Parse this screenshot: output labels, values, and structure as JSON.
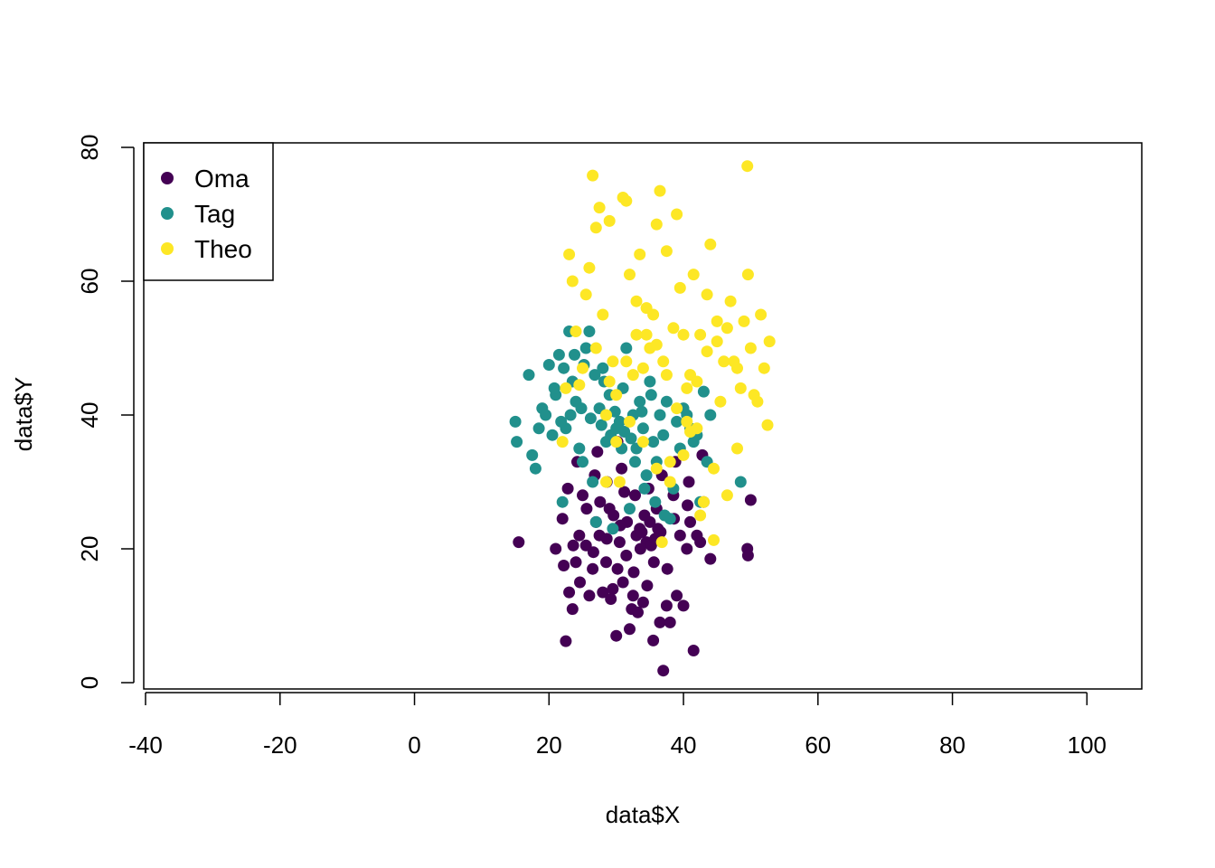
{
  "chart_data": {
    "type": "scatter",
    "title": "",
    "xlabel": "data$X",
    "ylabel": "data$Y",
    "xlim": [
      -40,
      108
    ],
    "ylim": [
      0,
      80
    ],
    "x_ticks": [
      -40,
      -20,
      0,
      20,
      40,
      60,
      80,
      100
    ],
    "y_ticks": [
      0,
      20,
      40,
      60,
      80
    ],
    "x_tick_labels": [
      "-40",
      "-20",
      "0",
      "20",
      "40",
      "60",
      "80",
      "100"
    ],
    "y_tick_labels": [
      "0",
      "20",
      "40",
      "60",
      "80"
    ],
    "grid": false,
    "legend": {
      "position": "top-left"
    },
    "series": [
      {
        "name": "Oma",
        "color": "#440154",
        "points": [
          [
            15.5,
            21
          ],
          [
            21,
            20
          ],
          [
            22,
            24.5
          ],
          [
            22.2,
            17.5
          ],
          [
            22.5,
            6.2
          ],
          [
            23,
            13.5
          ],
          [
            23.5,
            11
          ],
          [
            24,
            18
          ],
          [
            24.5,
            22
          ],
          [
            25,
            28
          ],
          [
            25.5,
            20.5
          ],
          [
            26,
            13
          ],
          [
            26.5,
            17
          ],
          [
            27,
            24
          ],
          [
            27.5,
            22
          ],
          [
            28,
            13.5
          ],
          [
            28.5,
            18
          ],
          [
            29,
            26
          ],
          [
            29.5,
            14
          ],
          [
            30,
            7
          ],
          [
            30.2,
            17
          ],
          [
            30.5,
            21
          ],
          [
            31,
            15
          ],
          [
            31.5,
            19
          ],
          [
            32,
            8
          ],
          [
            32.3,
            11
          ],
          [
            32.5,
            13
          ],
          [
            33,
            22
          ],
          [
            33.5,
            23
          ],
          [
            34,
            12
          ],
          [
            34.5,
            21
          ],
          [
            35,
            24
          ],
          [
            35.5,
            6.3
          ],
          [
            36,
            26
          ],
          [
            36.5,
            9
          ],
          [
            37,
            1.8
          ],
          [
            37.5,
            11.5
          ],
          [
            38,
            9
          ],
          [
            38.5,
            28
          ],
          [
            39,
            13
          ],
          [
            39.5,
            22
          ],
          [
            40,
            11.5
          ],
          [
            40.5,
            20
          ],
          [
            41,
            24
          ],
          [
            41.5,
            4.8
          ],
          [
            42,
            22
          ],
          [
            42.5,
            21
          ],
          [
            43,
            27
          ],
          [
            44,
            18.5
          ],
          [
            49.5,
            20
          ],
          [
            49.6,
            19
          ],
          [
            50,
            27.3
          ],
          [
            22.8,
            29
          ],
          [
            24.2,
            33
          ],
          [
            26.8,
            31
          ],
          [
            28.6,
            30
          ],
          [
            30.8,
            32
          ],
          [
            32.8,
            28
          ],
          [
            34.8,
            29
          ],
          [
            36.8,
            31
          ],
          [
            38.8,
            33
          ],
          [
            40.8,
            30
          ],
          [
            42.8,
            34
          ],
          [
            25.6,
            26
          ],
          [
            27.6,
            27
          ],
          [
            29.6,
            25
          ],
          [
            31.6,
            24
          ],
          [
            33.6,
            20
          ],
          [
            35.6,
            18
          ],
          [
            37.6,
            17
          ],
          [
            24.6,
            15
          ],
          [
            26.6,
            19.5
          ],
          [
            28.6,
            21.5
          ],
          [
            30.6,
            23.5
          ],
          [
            32.6,
            16.5
          ],
          [
            34.6,
            14.5
          ],
          [
            36.6,
            22.5
          ],
          [
            38.6,
            24.5
          ],
          [
            40.6,
            26.5
          ],
          [
            23.6,
            20.5
          ],
          [
            29.2,
            12.5
          ],
          [
            33.2,
            10.5
          ],
          [
            35.2,
            20.5
          ],
          [
            36.2,
            23
          ],
          [
            34.2,
            25
          ],
          [
            33.8,
            22.5
          ],
          [
            35.8,
            21.5
          ],
          [
            31.2,
            28.5
          ],
          [
            27.2,
            34.5
          ],
          [
            30.2,
            36
          ]
        ]
      },
      {
        "name": "Tag",
        "color": "#21908C",
        "points": [
          [
            15,
            39
          ],
          [
            15.2,
            36
          ],
          [
            17,
            46
          ],
          [
            17.5,
            34
          ],
          [
            18,
            32
          ],
          [
            18.5,
            38
          ],
          [
            19,
            41
          ],
          [
            19.5,
            40
          ],
          [
            20,
            47.5
          ],
          [
            20.5,
            37
          ],
          [
            21,
            43
          ],
          [
            21.5,
            49
          ],
          [
            22,
            27
          ],
          [
            22.5,
            38
          ],
          [
            23,
            52.5
          ],
          [
            23.5,
            45
          ],
          [
            24,
            42
          ],
          [
            24.5,
            35
          ],
          [
            25,
            33
          ],
          [
            25.5,
            50
          ],
          [
            26,
            52.5
          ],
          [
            26.5,
            30
          ],
          [
            27,
            24
          ],
          [
            27.5,
            41
          ],
          [
            28,
            47
          ],
          [
            28.5,
            36
          ],
          [
            29,
            43
          ],
          [
            29.5,
            23
          ],
          [
            30,
            38
          ],
          [
            30.5,
            39
          ],
          [
            31,
            44
          ],
          [
            31.5,
            50
          ],
          [
            32,
            26
          ],
          [
            32.5,
            40
          ],
          [
            33,
            35
          ],
          [
            33.5,
            42
          ],
          [
            34,
            38
          ],
          [
            34.5,
            31
          ],
          [
            35,
            45
          ],
          [
            35.5,
            36
          ],
          [
            36,
            33
          ],
          [
            36.5,
            40
          ],
          [
            37,
            37
          ],
          [
            37.5,
            42
          ],
          [
            38,
            24.5
          ],
          [
            38.5,
            29
          ],
          [
            39,
            39
          ],
          [
            39.5,
            35
          ],
          [
            40,
            41
          ],
          [
            40.5,
            40
          ],
          [
            41,
            38
          ],
          [
            41.5,
            36
          ],
          [
            42,
            37
          ],
          [
            42.5,
            27
          ],
          [
            43,
            43.5
          ],
          [
            43.5,
            33
          ],
          [
            44,
            40
          ],
          [
            48.5,
            30
          ],
          [
            20.8,
            44
          ],
          [
            22.2,
            47
          ],
          [
            23.8,
            49
          ],
          [
            25.2,
            47.5
          ],
          [
            26.8,
            46
          ],
          [
            28.2,
            45
          ],
          [
            29.8,
            40.5
          ],
          [
            31.2,
            37.5
          ],
          [
            32.8,
            33
          ],
          [
            34.2,
            29
          ],
          [
            35.8,
            27
          ],
          [
            37.2,
            25
          ],
          [
            21.8,
            39
          ],
          [
            23.2,
            40
          ],
          [
            24.8,
            41
          ],
          [
            26.2,
            39.5
          ],
          [
            27.8,
            38.5
          ],
          [
            29.2,
            37
          ],
          [
            30.8,
            35
          ],
          [
            32.2,
            36.5
          ],
          [
            33.8,
            40.5
          ],
          [
            35.2,
            43
          ]
        ]
      },
      {
        "name": "Theo",
        "color": "#FDE725",
        "points": [
          [
            22,
            36
          ],
          [
            22.5,
            44
          ],
          [
            23,
            64
          ],
          [
            23.5,
            60
          ],
          [
            24,
            52.5
          ],
          [
            24.5,
            44.5
          ],
          [
            25,
            47
          ],
          [
            25.5,
            58
          ],
          [
            26,
            62
          ],
          [
            26.5,
            75.8
          ],
          [
            27,
            68
          ],
          [
            27.5,
            71
          ],
          [
            28,
            55
          ],
          [
            28.5,
            30
          ],
          [
            29,
            69
          ],
          [
            29.5,
            48
          ],
          [
            30,
            36
          ],
          [
            30.5,
            30
          ],
          [
            31,
            72.5
          ],
          [
            31.5,
            72
          ],
          [
            32,
            61
          ],
          [
            32.5,
            46
          ],
          [
            33,
            57
          ],
          [
            33.5,
            64
          ],
          [
            34,
            47
          ],
          [
            34.5,
            52
          ],
          [
            35,
            50
          ],
          [
            35.5,
            55
          ],
          [
            36,
            68.5
          ],
          [
            36.5,
            73.5
          ],
          [
            37,
            48
          ],
          [
            37.5,
            64.5
          ],
          [
            38,
            33
          ],
          [
            38.5,
            53
          ],
          [
            39,
            70
          ],
          [
            39.5,
            59
          ],
          [
            40,
            52
          ],
          [
            40.5,
            44
          ],
          [
            41,
            46
          ],
          [
            41.5,
            61
          ],
          [
            42,
            38
          ],
          [
            42.5,
            52
          ],
          [
            43,
            27
          ],
          [
            43.5,
            58
          ],
          [
            44,
            65.5
          ],
          [
            44.5,
            32
          ],
          [
            45,
            51
          ],
          [
            45.5,
            42
          ],
          [
            46,
            48
          ],
          [
            46.5,
            28
          ],
          [
            47,
            57
          ],
          [
            47.5,
            48
          ],
          [
            48,
            35
          ],
          [
            48.5,
            44
          ],
          [
            49,
            54
          ],
          [
            49.5,
            77.2
          ],
          [
            49.6,
            61
          ],
          [
            50,
            50
          ],
          [
            50.5,
            43
          ],
          [
            51,
            42
          ],
          [
            51.5,
            55
          ],
          [
            52,
            47
          ],
          [
            52.5,
            38.5
          ],
          [
            52.8,
            51
          ],
          [
            36.8,
            21
          ],
          [
            42.5,
            25
          ],
          [
            44.5,
            21.3
          ],
          [
            43,
            27
          ],
          [
            28.5,
            40
          ],
          [
            30,
            43
          ],
          [
            31.5,
            48
          ],
          [
            33,
            52
          ],
          [
            34.5,
            56
          ],
          [
            36,
            50.5
          ],
          [
            37.5,
            46
          ],
          [
            39,
            41
          ],
          [
            40.5,
            39
          ],
          [
            42,
            45
          ],
          [
            43.5,
            49.5
          ],
          [
            45,
            54
          ],
          [
            46.5,
            53
          ],
          [
            48,
            47
          ],
          [
            27,
            50
          ],
          [
            29,
            45
          ],
          [
            32,
            39
          ],
          [
            34,
            36
          ],
          [
            36,
            32
          ],
          [
            38,
            30
          ],
          [
            40,
            34
          ],
          [
            41,
            37.5
          ]
        ]
      }
    ]
  }
}
